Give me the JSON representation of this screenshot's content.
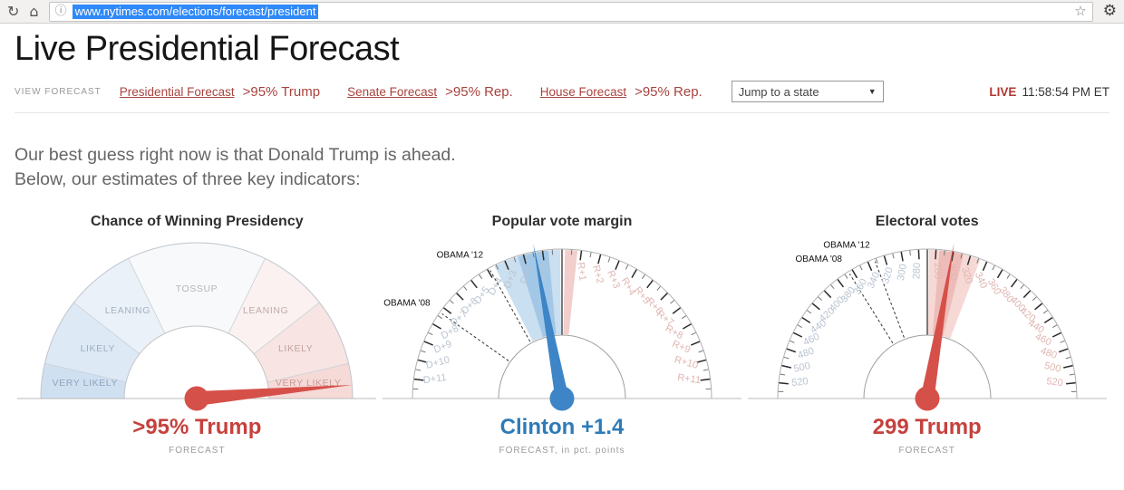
{
  "browser": {
    "url": "www.nytimes.com/elections/forecast/president",
    "selection_color": "#2f89f8",
    "icons": [
      "reload-icon",
      "home-icon",
      "info-icon",
      "bookmark-star-icon",
      "gear-icon"
    ]
  },
  "header": {
    "title": "Live Presidential Forecast"
  },
  "nav": {
    "view_label": "VIEW FORECAST",
    "links": [
      {
        "label": "Presidential Forecast",
        "value": ">95% Trump"
      },
      {
        "label": "Senate Forecast",
        "value": ">95% Rep."
      },
      {
        "label": "House Forecast",
        "value": ">95% Rep."
      }
    ],
    "state_select": "Jump to a state",
    "live_label": "LIVE",
    "time": "11:58:54 PM ET"
  },
  "intro": {
    "line1": "Our best guess right now is that Donald Trump is ahead.",
    "line2": "Below, our estimates of three key indicators:"
  },
  "chart_data": [
    {
      "type": "gauge",
      "variant": "sectors",
      "title": "Chance of Winning Presidency",
      "result": ">95% Trump",
      "result_color": "#c5413d",
      "sub": "FORECAST",
      "needle": {
        "angle": 85,
        "color": "#d6504a"
      },
      "sectors": [
        {
          "label": "VERY LIKELY",
          "from": -90,
          "to": -77,
          "fill": "#cfe0f1",
          "label_r": 124,
          "label_color": "#8fa5bc"
        },
        {
          "label": "LIKELY",
          "from": -77,
          "to": -52,
          "fill": "#dde9f5",
          "label_r": 121,
          "label_color": "#9cadc0"
        },
        {
          "label": "LEANING",
          "from": -52,
          "to": -26,
          "fill": "#eaf1f8",
          "label_r": 121,
          "label_color": "#a6b1bf"
        },
        {
          "label": "TOSSUP",
          "from": -26,
          "to": 26,
          "fill": "#f7f9fb",
          "label_r": 118,
          "label_color": "#b4b7ba"
        },
        {
          "label": "LEANING",
          "from": 26,
          "to": 52,
          "fill": "#faf1f0",
          "label_r": 121,
          "label_color": "#bfaba8"
        },
        {
          "label": "LIKELY",
          "from": 52,
          "to": 77,
          "fill": "#f8e5e3",
          "label_r": 121,
          "label_color": "#c3a29e"
        },
        {
          "label": "VERY LIKELY",
          "from": 77,
          "to": 90,
          "fill": "#f5dad7",
          "label_r": 124,
          "label_color": "#c79b95"
        }
      ]
    },
    {
      "type": "gauge",
      "variant": "ticks",
      "title": "Popular vote margin",
      "result": "Clinton +1.4",
      "result_color": "#2d7bb8",
      "sub": "FORECAST, in pct. points",
      "scale": {
        "deg_per_unit": 7.5,
        "tick_step": 0.5,
        "tick_max": 11.5,
        "major_step": 1,
        "major_phase": 0
      },
      "center_line": true,
      "bands": [
        {
          "from": -3.6,
          "to": -0.1,
          "fill": "#cadfef"
        },
        {
          "from": -2.3,
          "to": -0.7,
          "fill": "#a3c8e7"
        },
        {
          "from": 0.15,
          "to": 0.8,
          "fill": "#f2cfcc"
        }
      ],
      "references": [
        {
          "label": "OBAMA '12",
          "value": -3.9
        },
        {
          "label": "OBAMA '08",
          "value": -7.3
        }
      ],
      "needle": {
        "value": -1.4,
        "color": "#3d85c6"
      },
      "label_colors": {
        "left": "#b9c4d1",
        "right": "#dfb6b2"
      },
      "labels": [
        {
          "text": "D+1",
          "value": -1
        },
        {
          "text": "D+2",
          "value": -2
        },
        {
          "text": "D+3",
          "value": -3
        },
        {
          "text": "D+4",
          "value": -4
        },
        {
          "text": "D+5",
          "value": -5
        },
        {
          "text": "D+6",
          "value": -6
        },
        {
          "text": "D+7",
          "value": -7
        },
        {
          "text": "D+8",
          "value": -8
        },
        {
          "text": "D+9",
          "value": -9
        },
        {
          "text": "D+10",
          "value": -10
        },
        {
          "text": "D+11",
          "value": -11
        },
        {
          "text": "R+1",
          "value": 1
        },
        {
          "text": "R+2",
          "value": 2
        },
        {
          "text": "R+3",
          "value": 3
        },
        {
          "text": "R+4",
          "value": 4
        },
        {
          "text": "R+5",
          "value": 5
        },
        {
          "text": "R+6",
          "value": 6
        },
        {
          "text": "R+7",
          "value": 7
        },
        {
          "text": "R+8",
          "value": 8
        },
        {
          "text": "R+9",
          "value": 9
        },
        {
          "text": "R+10",
          "value": 10
        },
        {
          "text": "R+11",
          "value": 11
        }
      ]
    },
    {
      "type": "gauge",
      "variant": "ticks",
      "title": "Electoral votes",
      "result": "299 Trump",
      "result_color": "#c5413d",
      "sub": "FORECAST",
      "scale": {
        "deg_per_unit": 0.3358,
        "tick_step": 10,
        "tick_max": 260,
        "major_step": 20,
        "major_phase": 10
      },
      "center_line": true,
      "bands": [
        {
          "from": 2,
          "to": 62,
          "fill": "#f6d8d5"
        },
        {
          "from": 14,
          "to": 42,
          "fill": "#eebcb8"
        }
      ],
      "references": [
        {
          "label": "OBAMA '12",
          "value": -62
        },
        {
          "label": "OBAMA '08",
          "value": -95
        }
      ],
      "needle": {
        "value": 29,
        "color": "#d6504a"
      },
      "label_colors": {
        "left": "#b9c4d1",
        "right": "#dfb6b2"
      },
      "labels": [
        {
          "text": "280",
          "value": -10
        },
        {
          "text": "300",
          "value": -30
        },
        {
          "text": "320",
          "value": -50
        },
        {
          "text": "340",
          "value": -70
        },
        {
          "text": "360",
          "value": -90
        },
        {
          "text": "380",
          "value": -110
        },
        {
          "text": "400",
          "value": -130
        },
        {
          "text": "420",
          "value": -150
        },
        {
          "text": "440",
          "value": -170
        },
        {
          "text": "460",
          "value": -190
        },
        {
          "text": "480",
          "value": -210
        },
        {
          "text": "500",
          "value": -230
        },
        {
          "text": "520",
          "value": -250
        },
        {
          "text": "280",
          "value": 10
        },
        {
          "text": "300",
          "value": 30
        },
        {
          "text": "320",
          "value": 50
        },
        {
          "text": "340",
          "value": 70
        },
        {
          "text": "360",
          "value": 90
        },
        {
          "text": "380",
          "value": 110
        },
        {
          "text": "400",
          "value": 130
        },
        {
          "text": "420",
          "value": 150
        },
        {
          "text": "440",
          "value": 170
        },
        {
          "text": "460",
          "value": 190
        },
        {
          "text": "480",
          "value": 210
        },
        {
          "text": "500",
          "value": 230
        },
        {
          "text": "520",
          "value": 250
        }
      ]
    }
  ]
}
